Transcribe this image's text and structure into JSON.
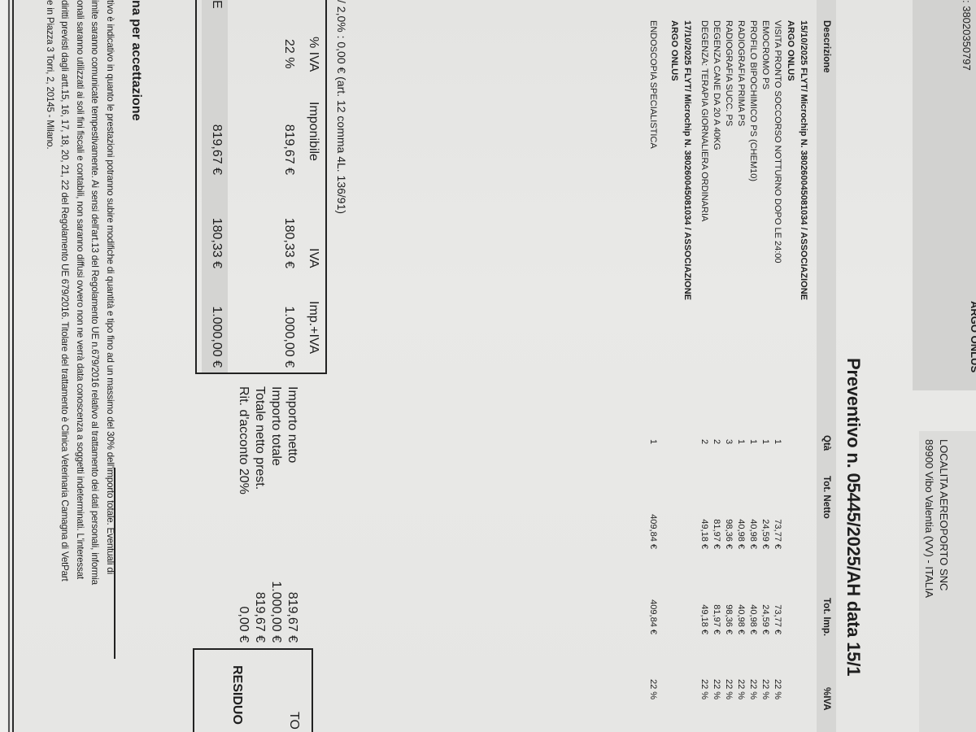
{
  "header": {
    "tax_code_fragment": ": 38020350797",
    "client_name_fragment": "ARGO ONLUS",
    "client_address_line1": "LOCALITA AEREOPORTO SNC",
    "client_address_line2": "89900 Vibo Valentia (VV) - ITALIA"
  },
  "title": "Preventivo n. 05445/2025/AH   data 15/1",
  "table": {
    "columns": [
      "Descrizione",
      "Qtà",
      "Tot. Netto",
      "Tot. Imp.",
      "%IVA"
    ],
    "groups": [
      {
        "heading": [
          "15/10/2025 FLYT/ Microchip N. 380260045081034 / ASSOCIAZIONE",
          "ARGO ONLUS"
        ],
        "rows": [
          {
            "desc": "VISITA PRONTO SOCCORSO NOTTURNO DOPO LE 24:00",
            "qty": "1",
            "netto": "73,77 €",
            "imp": "73,77 €",
            "iva": "22 %"
          },
          {
            "desc": "EMOCROMO PS",
            "qty": "1",
            "netto": "24,59 €",
            "imp": "24,59 €",
            "iva": "22 %"
          },
          {
            "desc": "PROFILO BIPOCHIMICO PS (CHEM10)",
            "qty": "1",
            "netto": "40,98 €",
            "imp": "40,98 €",
            "iva": "22 %"
          },
          {
            "desc": "RADIOGRAFIA PRIMA PS",
            "qty": "1",
            "netto": "40,98 €",
            "imp": "40,98 €",
            "iva": "22 %"
          },
          {
            "desc": "RADIOGRAFIA SUCC. PS",
            "qty": "3",
            "netto": "98,36 €",
            "imp": "98,36 €",
            "iva": "22 %"
          },
          {
            "desc": "DEGENZA CANE DA 20 A 40KG",
            "qty": "2",
            "netto": "81,97 €",
            "imp": "81,97 €",
            "iva": "22 %"
          },
          {
            "desc": "DEGENZA: TERAPIA GIORNALIERA ORDINARIA",
            "qty": "2",
            "netto": "49,18 €",
            "imp": "49,18 €",
            "iva": "22 %"
          }
        ]
      },
      {
        "heading": [
          "17/10/2025 FLYT/ Microchip N. 380260045081034 / ASSOCIAZIONE",
          "ARGO ONLUS"
        ],
        "rows": [
          {
            "desc": "ENDOSCOPIA SPECIALISTICA",
            "qty": "1",
            "netto": "409,84 €",
            "imp": "409,84 €",
            "iva": "22 %"
          }
        ]
      }
    ]
  },
  "withholding_note": "/ 2,0% : 0,00 €   (art. 12 comma 4L. 136/91)",
  "vat_summary": {
    "columns": [
      "% IVA",
      "Imponibile",
      "IVA",
      "Imp.+IVA"
    ],
    "row": [
      "22 %",
      "819,67 €",
      "180,33 €",
      "1.000,00 €"
    ],
    "total_label_fragment": "E",
    "total": [
      "819,67 €",
      "180,33 €",
      "1.000,00 €"
    ]
  },
  "totals": [
    {
      "label": "Importo netto",
      "value": "819,67 €"
    },
    {
      "label": "Importo totale",
      "value": "1.000,00 €"
    },
    {
      "label": "Totale netto prest.",
      "value": "819,67 €"
    },
    {
      "label": "Rit. d'acconto 20%",
      "value": "0,00 €"
    }
  ],
  "residuo_box": {
    "top_label_fragment": "TO",
    "label_fragment": "RESIDUO"
  },
  "signature_label_fragment": "na per accettazione",
  "disclaimer_lines": [
    "tivo è indicativo in quanto le prestazioni potranno subire modifiche di quantità e tipo fino ad un massimo del 30% dell'importo totale. Eventuali di",
    "imite saranno comunicate tempestivamente. Ai sensi dell'art.13 del Regolamento UE n.679/2016 relativo al trattamento dei dati personali, informia",
    "onali saranno utilizzati ai soli fini fiscali e contabili, non saranno diffusi ovvero non ne verrà data conoscenza a soggetti indeterminati. L'interessat",
    "diritti previsti dagli artt.15, 16, 17, 18, 20, 21, 22 del Regolamento UE 679/2016. Titolare del trattamento è Clinica Veterinaria Camagna di VetPart",
    "e in Piazza 3 Torri, 2, 20145 - Milano."
  ]
}
